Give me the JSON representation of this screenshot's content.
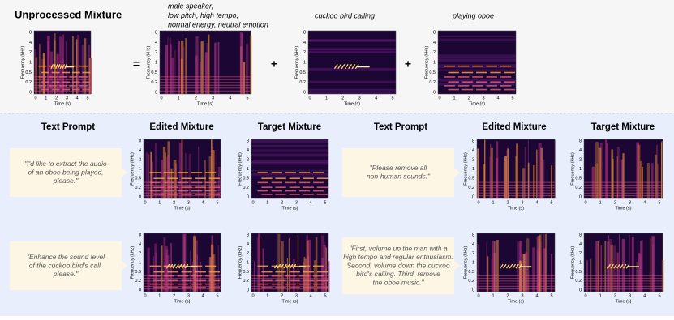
{
  "top": {
    "title": "Unprocessed Mixture",
    "operators": [
      "=",
      "+",
      "+"
    ],
    "sources": [
      {
        "caption_lines": [
          "male speaker,",
          "low pitch, high tempo,",
          "normal energy, neutral emotion"
        ]
      },
      {
        "caption_lines": [
          "cuckoo bird calling"
        ]
      },
      {
        "caption_lines": [
          "playing oboe"
        ]
      }
    ]
  },
  "columns": [
    "Text Prompt",
    "Edited Mixture",
    "Target Mixture",
    "Text Prompt",
    "Edited Mixture",
    "Target Mixture"
  ],
  "prompts": [
    {
      "lines": [
        "\"I'd like to extract the audio",
        "of an oboe being played,",
        "please.\""
      ]
    },
    {
      "lines": [
        "\"Please remove all",
        "non-human sounds.\""
      ]
    },
    {
      "lines": [
        "\"Enhance the sound level",
        "of the cuckoo bird's call,",
        "please.\""
      ]
    },
    {
      "lines": [
        "\"First, volume up the man with a",
        "high tempo and regular enthusiasm.",
        "Second, volume down the cuckoo",
        "bird's calling. Third, remove",
        "the oboe music.\""
      ]
    }
  ],
  "axes": {
    "x_label": "Time (s)",
    "y_label": "Frequency (kHz)",
    "x_ticks": [
      "0",
      "1",
      "2",
      "3",
      "4",
      "5"
    ],
    "y_ticks": [
      "8",
      "4",
      "2",
      "1",
      "0.5",
      "0.2",
      "0"
    ]
  }
}
